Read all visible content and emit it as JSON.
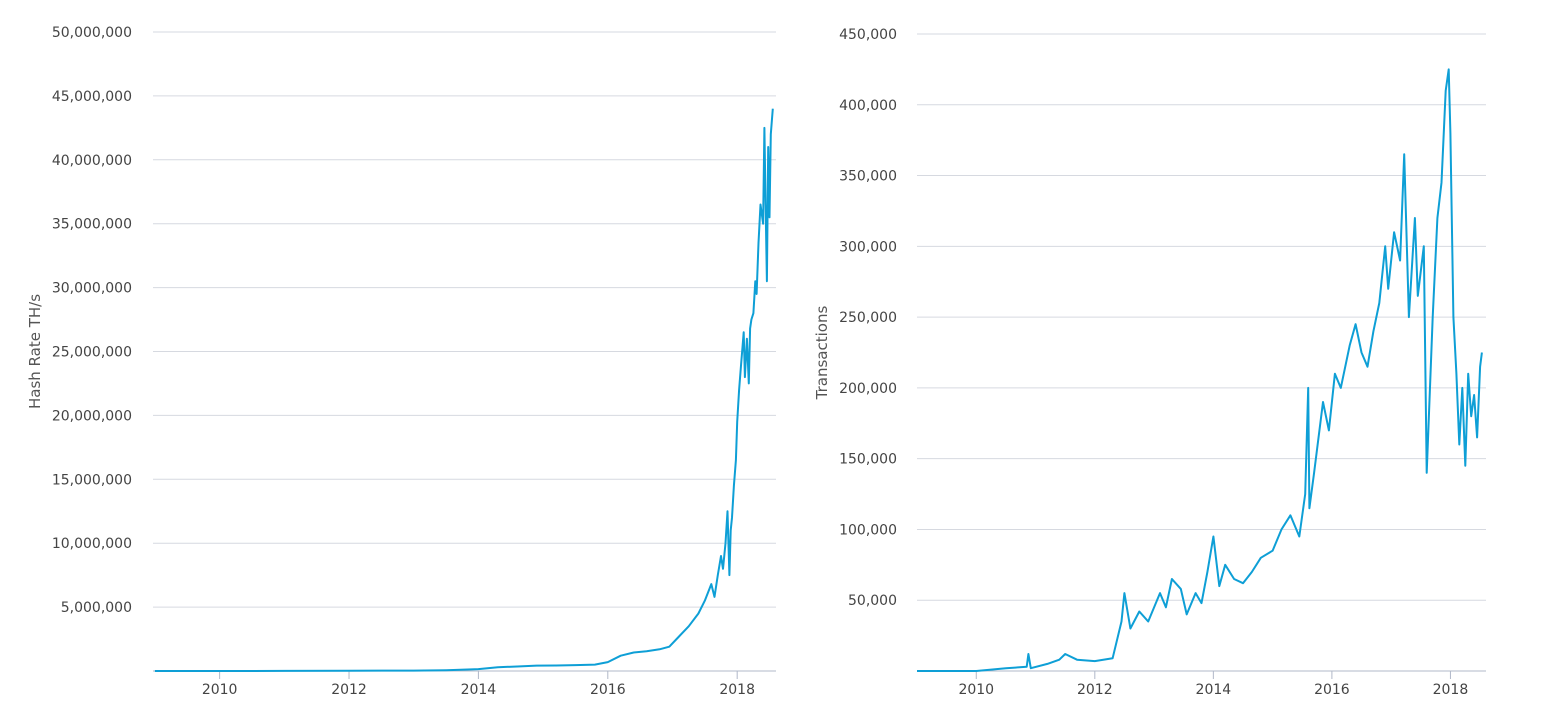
{
  "chart_data": [
    {
      "type": "line",
      "title": "",
      "xlabel": "",
      "ylabel": "Hash Rate TH/s",
      "xlim": [
        2008.97,
        2018.6
      ],
      "ylim": [
        0,
        50000000
      ],
      "x_ticks": [
        2010,
        2012,
        2014,
        2016,
        2018
      ],
      "y_ticks": [
        5000000,
        10000000,
        15000000,
        20000000,
        25000000,
        30000000,
        35000000,
        40000000,
        45000000,
        50000000
      ],
      "y_tick_labels": [
        "5,000,000",
        "10,000,000",
        "15,000,000",
        "20,000,000",
        "25,000,000",
        "30,000,000",
        "35,000,000",
        "40,000,000",
        "45,000,000",
        "50,000,000"
      ],
      "x_tick_labels": [
        "2010",
        "2012",
        "2014",
        "2016",
        "2018"
      ],
      "grid": true,
      "legend": "none",
      "color": "#0e9fd6",
      "series": [
        {
          "x": [
            2009.0,
            2010.0,
            2011.0,
            2012.0,
            2013.0,
            2013.5,
            2014.0,
            2014.3,
            2014.6,
            2014.9,
            2015.2,
            2015.5,
            2015.8,
            2016.0,
            2016.2,
            2016.4,
            2016.6,
            2016.8,
            2016.95,
            2017.1,
            2017.25,
            2017.4,
            2017.5,
            2017.6,
            2017.65,
            2017.7,
            2017.75,
            2017.78,
            2017.82,
            2017.85,
            2017.88,
            2017.9,
            2017.92,
            2017.95,
            2017.98,
            2018.0,
            2018.03,
            2018.06,
            2018.1,
            2018.12,
            2018.15,
            2018.18,
            2018.2,
            2018.22,
            2018.25,
            2018.28,
            2018.3,
            2018.33,
            2018.36,
            2018.4,
            2018.42,
            2018.44,
            2018.46,
            2018.48,
            2018.5,
            2018.52,
            2018.55
          ],
          "y": [
            0,
            0,
            10000,
            20000,
            30000,
            60000,
            150000,
            300000,
            350000,
            420000,
            430000,
            460000,
            500000,
            700000,
            1200000,
            1450000,
            1550000,
            1700000,
            1900000,
            2700000,
            3500000,
            4500000,
            5500000,
            6800000,
            5800000,
            7500000,
            9000000,
            8000000,
            10000000,
            12500000,
            7500000,
            11000000,
            12000000,
            14500000,
            16500000,
            19500000,
            22000000,
            24000000,
            26500000,
            23000000,
            26000000,
            22500000,
            26800000,
            27500000,
            28000000,
            30500000,
            29500000,
            33500000,
            36500000,
            35000000,
            42500000,
            36500000,
            30500000,
            41000000,
            35500000,
            42000000,
            44000000
          ]
        }
      ]
    },
    {
      "type": "line",
      "title": "",
      "xlabel": "",
      "ylabel": "Transactions",
      "xlim": [
        2009.0,
        2018.6
      ],
      "ylim": [
        0,
        450000
      ],
      "x_ticks": [
        2010,
        2012,
        2014,
        2016,
        2018
      ],
      "y_ticks": [
        50000,
        100000,
        150000,
        200000,
        250000,
        300000,
        350000,
        400000,
        450000
      ],
      "y_tick_labels": [
        "50,000",
        "100,000",
        "150,000",
        "200,000",
        "250,000",
        "300,000",
        "350,000",
        "400,000",
        "450,000"
      ],
      "x_tick_labels": [
        "2010",
        "2012",
        "2014",
        "2016",
        "2018"
      ],
      "grid": true,
      "legend": "none",
      "color": "#0e9fd6",
      "series": [
        {
          "x": [
            2009.0,
            2010.0,
            2010.5,
            2010.85,
            2010.88,
            2010.92,
            2011.2,
            2011.4,
            2011.5,
            2011.7,
            2012.0,
            2012.3,
            2012.45,
            2012.5,
            2012.6,
            2012.75,
            2012.9,
            2013.1,
            2013.2,
            2013.3,
            2013.45,
            2013.55,
            2013.7,
            2013.8,
            2013.9,
            2014.0,
            2014.1,
            2014.2,
            2014.35,
            2014.5,
            2014.65,
            2014.8,
            2015.0,
            2015.15,
            2015.3,
            2015.45,
            2015.55,
            2015.6,
            2015.62,
            2015.7,
            2015.85,
            2015.95,
            2016.05,
            2016.15,
            2016.3,
            2016.4,
            2016.5,
            2016.6,
            2016.7,
            2016.8,
            2016.9,
            2016.95,
            2017.05,
            2017.15,
            2017.22,
            2017.3,
            2017.4,
            2017.45,
            2017.55,
            2017.6,
            2017.7,
            2017.78,
            2017.85,
            2017.92,
            2017.97,
            2018.0,
            2018.05,
            2018.1,
            2018.15,
            2018.2,
            2018.25,
            2018.3,
            2018.35,
            2018.4,
            2018.45,
            2018.5,
            2018.53
          ],
          "y": [
            0,
            0,
            2000,
            3000,
            12000,
            2000,
            5000,
            8000,
            12000,
            8000,
            7000,
            9000,
            35000,
            55000,
            30000,
            42000,
            35000,
            55000,
            45000,
            65000,
            58000,
            40000,
            55000,
            48000,
            70000,
            95000,
            60000,
            75000,
            65000,
            62000,
            70000,
            80000,
            85000,
            100000,
            110000,
            95000,
            125000,
            200000,
            115000,
            140000,
            190000,
            170000,
            210000,
            200000,
            230000,
            245000,
            225000,
            215000,
            240000,
            260000,
            300000,
            270000,
            310000,
            290000,
            365000,
            250000,
            320000,
            265000,
            300000,
            140000,
            250000,
            320000,
            345000,
            410000,
            425000,
            380000,
            250000,
            210000,
            160000,
            200000,
            145000,
            210000,
            180000,
            195000,
            165000,
            215000,
            225000
          ]
        }
      ]
    }
  ]
}
